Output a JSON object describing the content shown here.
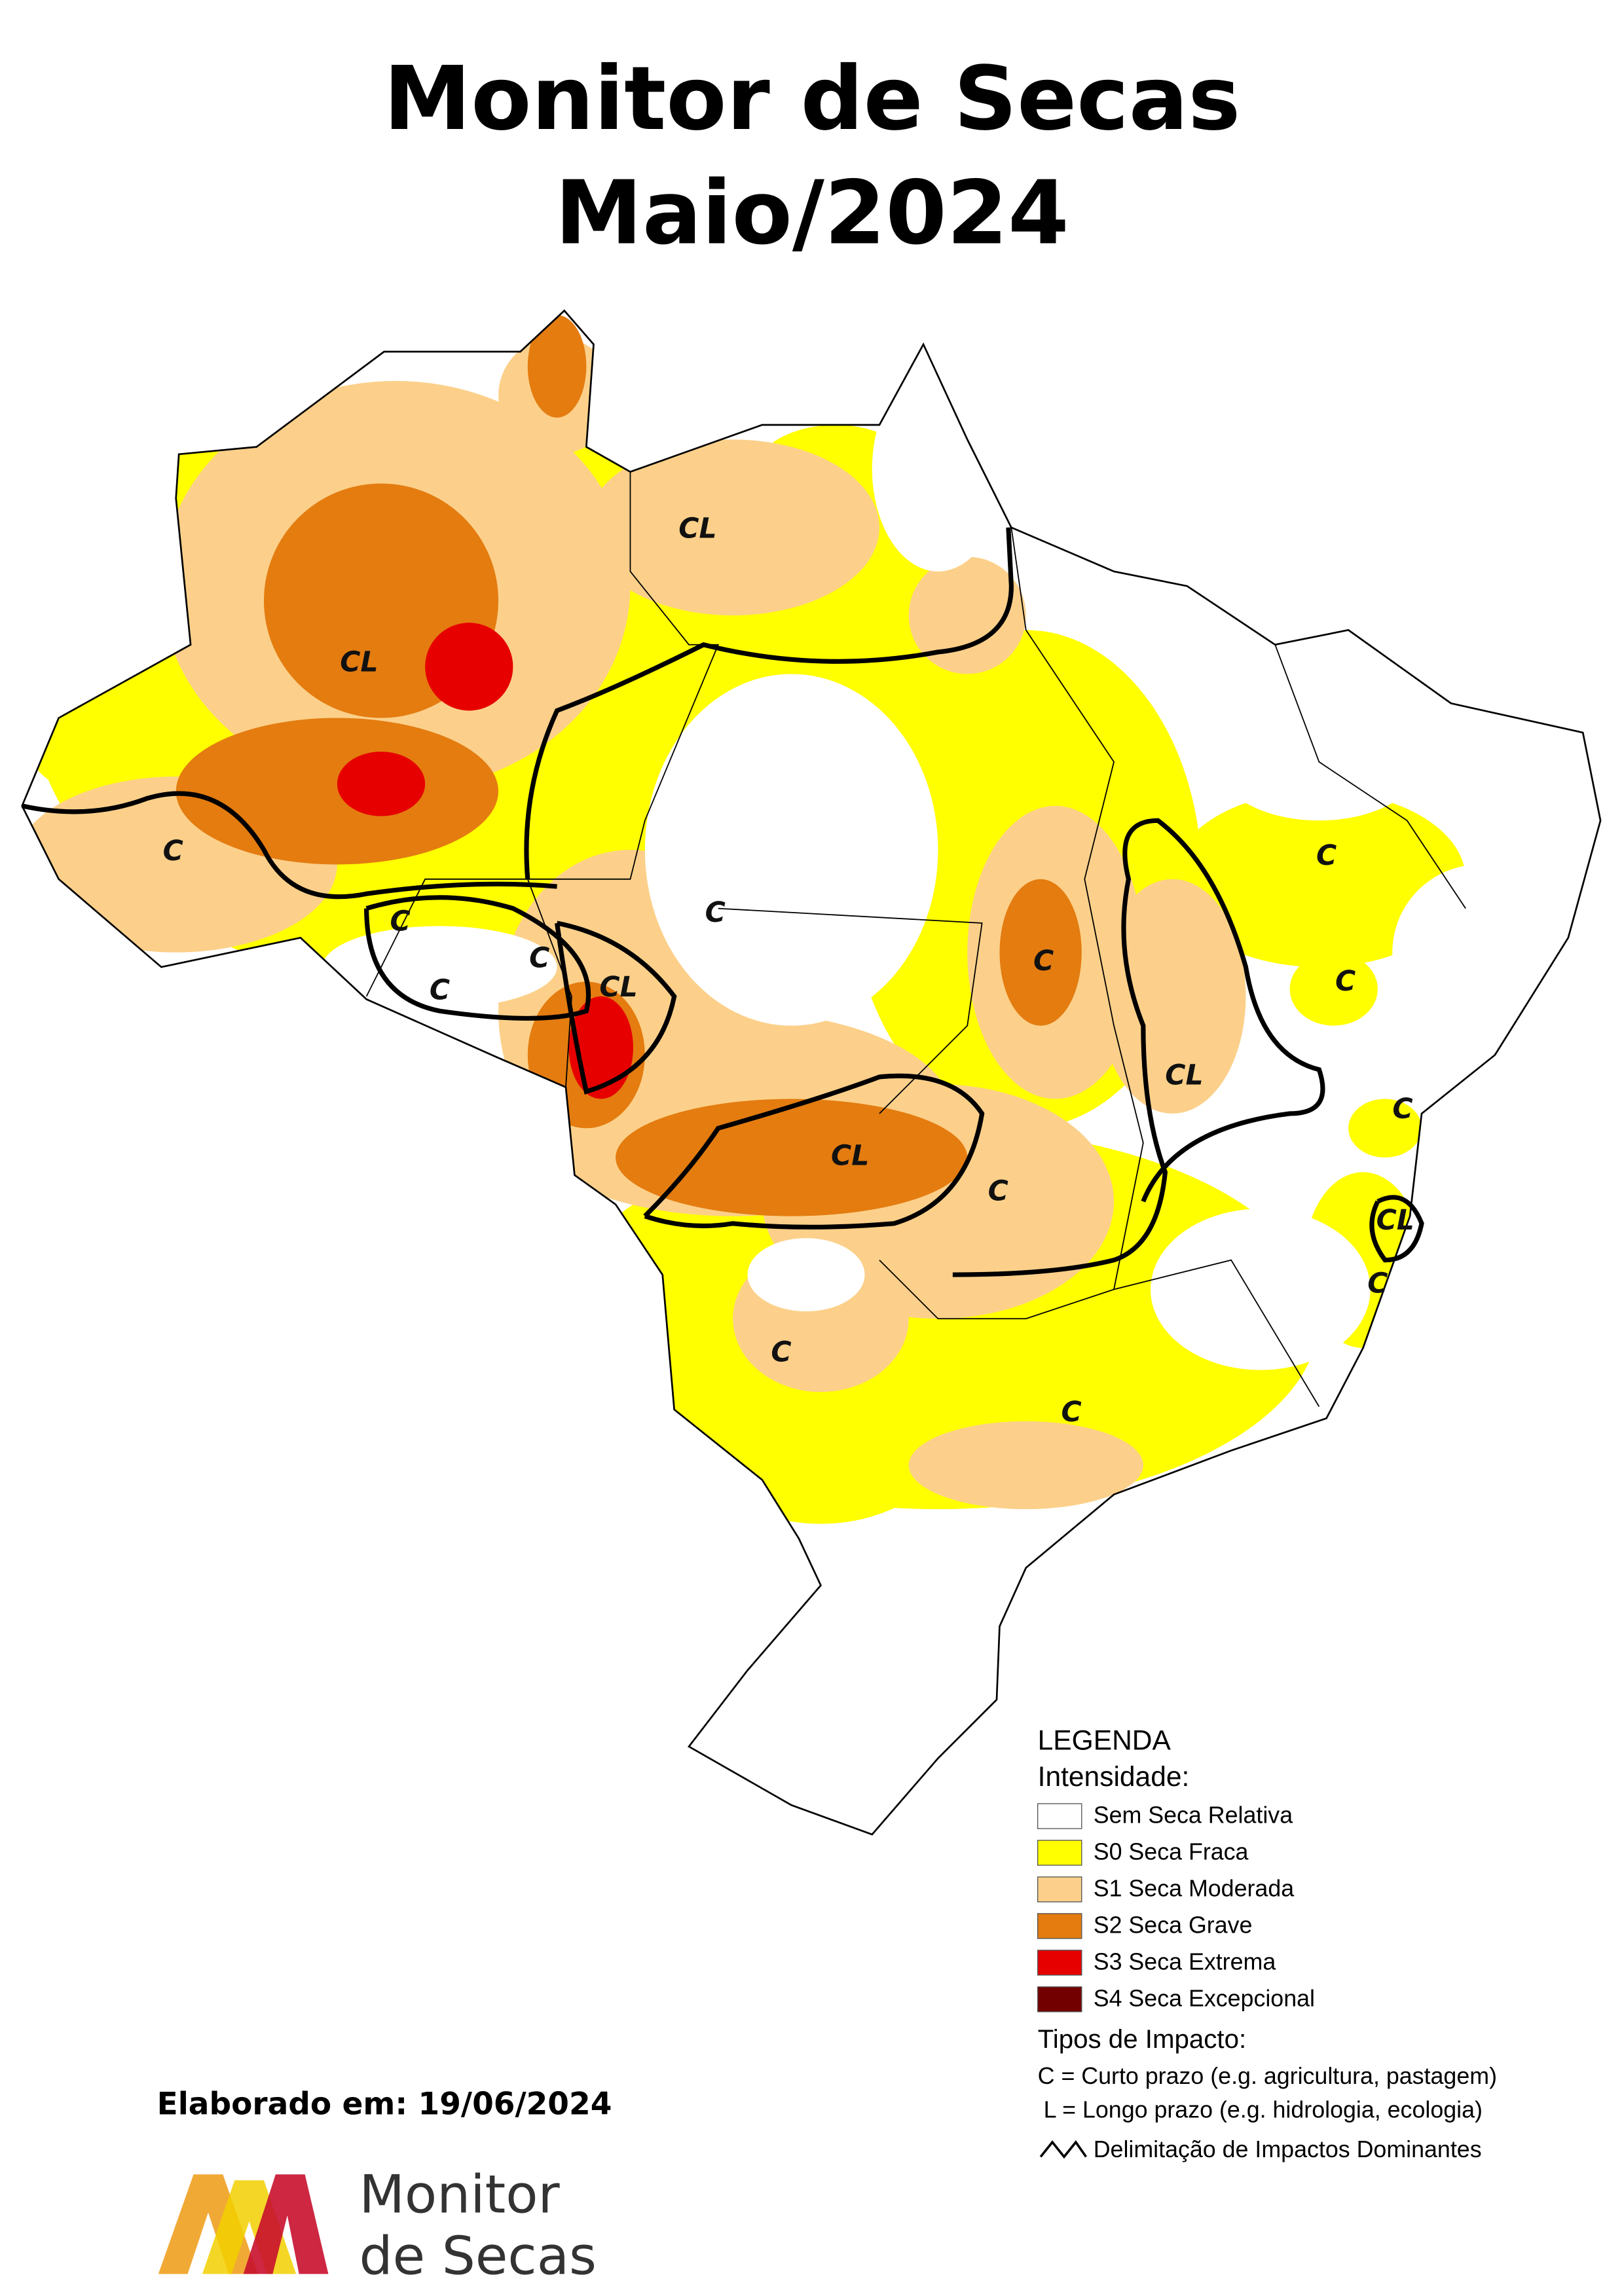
{
  "title": [
    "Monitor de Secas",
    "Maio/2024"
  ],
  "map_labels": [
    "CL",
    "CL",
    "C",
    "C",
    "C",
    "C",
    "CL",
    "C",
    "C",
    "CL",
    "CL",
    "C",
    "C",
    "C",
    "C",
    "CL",
    "C",
    "C",
    "C"
  ],
  "legend": {
    "heading": "LEGENDA",
    "subheading": "Intensidade:",
    "items": [
      {
        "label": "Sem Seca Relativa",
        "color": "#ffffff"
      },
      {
        "label": "S0 Seca Fraca",
        "color": "#ffff00"
      },
      {
        "label": "S1 Seca Moderada",
        "color": "#fcd08a"
      },
      {
        "label": "S2 Seca Grave",
        "color": "#e47c10"
      },
      {
        "label": "S3 Seca Extrema",
        "color": "#e60000"
      },
      {
        "label": "S4 Seca Excepcional",
        "color": "#730000"
      }
    ],
    "impact_heading": "Tipos de Impacto:",
    "impact_types": [
      "C = Curto prazo (e.g. agricultura, pastagem)",
      "L = Longo prazo (e.g. hidrologia, ecologia)"
    ],
    "boundary_label": "Delimitação de Impactos Dominantes"
  },
  "footer": {
    "created": "Elaborado em: 19/06/2024",
    "logo_text": [
      "Monitor",
      "de Secas"
    ]
  }
}
